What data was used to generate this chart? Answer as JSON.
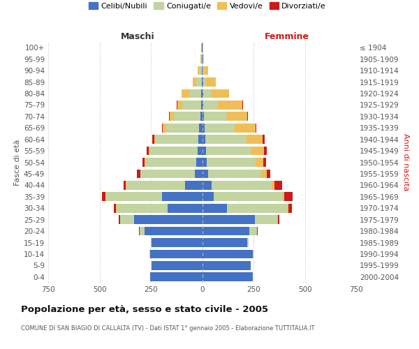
{
  "age_groups": [
    "100+",
    "95-99",
    "90-94",
    "85-89",
    "80-84",
    "75-79",
    "70-74",
    "65-69",
    "60-64",
    "55-59",
    "50-54",
    "45-49",
    "40-44",
    "35-39",
    "30-34",
    "25-29",
    "20-24",
    "15-19",
    "10-14",
    "5-9",
    "0-4"
  ],
  "birth_years": [
    "≤ 1904",
    "1905-1909",
    "1910-1914",
    "1915-1919",
    "1920-1924",
    "1925-1929",
    "1930-1934",
    "1935-1939",
    "1940-1944",
    "1945-1949",
    "1950-1954",
    "1955-1959",
    "1960-1964",
    "1965-1969",
    "1970-1974",
    "1975-1979",
    "1980-1984",
    "1985-1989",
    "1990-1994",
    "1995-1999",
    "2000-2004"
  ],
  "male_celibe": [
    1,
    1,
    2,
    3,
    4,
    6,
    10,
    14,
    18,
    22,
    28,
    35,
    85,
    195,
    170,
    330,
    280,
    245,
    255,
    245,
    255
  ],
  "male_coniugato": [
    2,
    4,
    12,
    26,
    56,
    90,
    128,
    162,
    208,
    232,
    248,
    265,
    285,
    275,
    248,
    70,
    25,
    4,
    1,
    0,
    0
  ],
  "male_vedovo": [
    1,
    2,
    8,
    18,
    40,
    25,
    20,
    15,
    8,
    6,
    4,
    2,
    1,
    1,
    1,
    1,
    0,
    0,
    0,
    0,
    0
  ],
  "male_divorziato": [
    0,
    0,
    0,
    0,
    0,
    2,
    4,
    4,
    8,
    10,
    10,
    16,
    12,
    18,
    10,
    4,
    2,
    1,
    0,
    0,
    0
  ],
  "female_celibe": [
    0,
    1,
    2,
    4,
    4,
    6,
    8,
    12,
    16,
    18,
    22,
    30,
    45,
    55,
    120,
    258,
    228,
    220,
    248,
    238,
    245
  ],
  "female_coniugata": [
    2,
    3,
    8,
    14,
    38,
    72,
    112,
    145,
    200,
    220,
    238,
    258,
    295,
    338,
    295,
    108,
    38,
    6,
    2,
    0,
    0
  ],
  "female_vedova": [
    2,
    5,
    18,
    48,
    88,
    118,
    98,
    102,
    78,
    62,
    38,
    28,
    12,
    8,
    6,
    4,
    2,
    0,
    0,
    0,
    0
  ],
  "female_divorziata": [
    0,
    0,
    0,
    0,
    2,
    3,
    4,
    4,
    10,
    14,
    14,
    16,
    38,
    38,
    16,
    6,
    2,
    0,
    0,
    0,
    0
  ],
  "colors": {
    "celibe": "#4472C4",
    "coniugato": "#C2D4A0",
    "vedovo": "#F0BE58",
    "divorziato": "#CC1A1A"
  },
  "title": "Popolazione per età, sesso e stato civile - 2005",
  "subtitle": "COMUNE DI SAN BIAGIO DI CALLALTA (TV) - Dati ISTAT 1° gennaio 2005 - Elaborazione TUTTITALIA.IT",
  "maschi_label": "Maschi",
  "femmine_label": "Femmine",
  "ylabel_left": "Fasce di età",
  "ylabel_right": "Anni di nascita",
  "xlim": 750,
  "legend_labels": [
    "Celibi/Nubili",
    "Coniugati/e",
    "Vedovi/e",
    "Divorziati/e"
  ]
}
